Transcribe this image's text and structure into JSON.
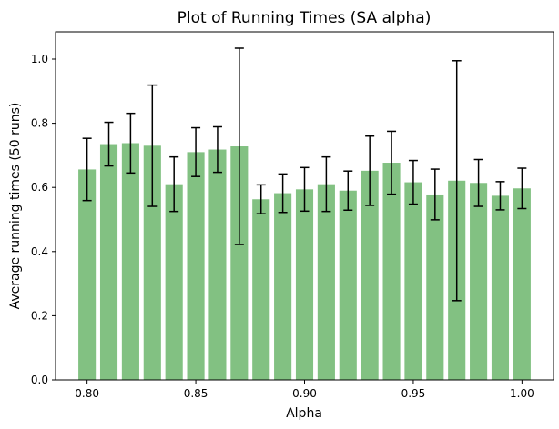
{
  "chart_data": {
    "type": "bar",
    "title": "Plot of Running Times (SA alpha)",
    "xlabel": "Alpha",
    "ylabel": "Average running times (50 runs)",
    "x": [
      0.8,
      0.81,
      0.82,
      0.83,
      0.84,
      0.85,
      0.86,
      0.87,
      0.88,
      0.89,
      0.9,
      0.91,
      0.92,
      0.93,
      0.94,
      0.95,
      0.96,
      0.97,
      0.98,
      0.99,
      1.0
    ],
    "values": [
      0.656,
      0.735,
      0.738,
      0.73,
      0.61,
      0.71,
      0.718,
      0.728,
      0.563,
      0.582,
      0.594,
      0.61,
      0.59,
      0.652,
      0.677,
      0.616,
      0.578,
      0.621,
      0.614,
      0.574,
      0.597
    ],
    "errors": [
      0.097,
      0.068,
      0.093,
      0.189,
      0.085,
      0.076,
      0.071,
      0.306,
      0.045,
      0.06,
      0.068,
      0.085,
      0.061,
      0.108,
      0.098,
      0.068,
      0.079,
      0.374,
      0.073,
      0.044,
      0.063
    ],
    "xlim": [
      0.7855,
      1.0145
    ],
    "ylim": [
      0.0,
      1.085
    ],
    "xticks": [
      "0.80",
      "0.85",
      "0.90",
      "0.95",
      "1.00"
    ],
    "xtick_values": [
      0.8,
      0.85,
      0.9,
      0.95,
      1.0
    ],
    "yticks": [
      "0.0",
      "0.2",
      "0.4",
      "0.6",
      "0.8",
      "1.0"
    ],
    "ytick_values": [
      0.0,
      0.2,
      0.4,
      0.6,
      0.8,
      1.0
    ],
    "bar_color": "#82c182",
    "error_color": "#000000",
    "grid": false
  }
}
